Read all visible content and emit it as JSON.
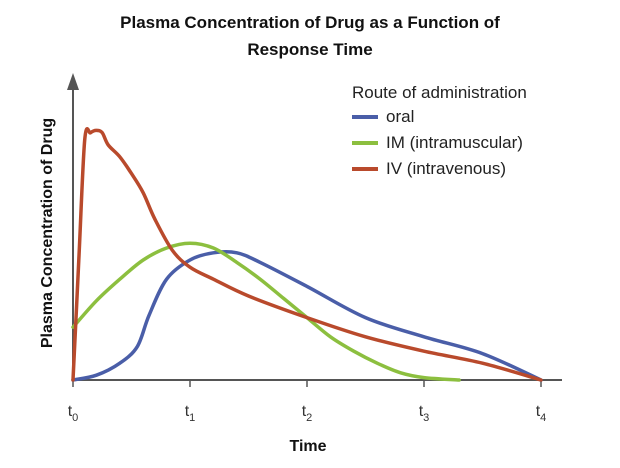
{
  "chart_data": {
    "type": "line",
    "title_lines": [
      "Plasma Concentration of Drug as a Function of",
      "Response Time"
    ],
    "xlabel": "Time",
    "ylabel": "Plasma Concentration of Drug",
    "x_ticks": [
      {
        "base": "t",
        "sub": "0",
        "x": 0
      },
      {
        "base": "t",
        "sub": "1",
        "x": 1
      },
      {
        "base": "t",
        "sub": "2",
        "x": 2
      },
      {
        "base": "t",
        "sub": "3",
        "x": 3
      },
      {
        "base": "t",
        "sub": "4",
        "x": 4
      }
    ],
    "xlim": [
      0,
      4.2
    ],
    "ylim": [
      0,
      1.05
    ],
    "y_tick_labels": false,
    "grid": false,
    "legend": {
      "title": "Route of administration",
      "placement": "top-right",
      "entries": [
        "oral",
        "IM (intramuscular)",
        "IV (intravenous)"
      ]
    },
    "series": [
      {
        "name": "oral",
        "color": "#4a5ea8",
        "points": [
          [
            0,
            0
          ],
          [
            0.2,
            0.02
          ],
          [
            0.4,
            0.07
          ],
          [
            0.55,
            0.14
          ],
          [
            0.65,
            0.27
          ],
          [
            0.8,
            0.42
          ],
          [
            1.0,
            0.5
          ],
          [
            1.2,
            0.53
          ],
          [
            1.4,
            0.53
          ],
          [
            1.6,
            0.49
          ],
          [
            2.0,
            0.39
          ],
          [
            2.5,
            0.26
          ],
          [
            3.0,
            0.18
          ],
          [
            3.5,
            0.11
          ],
          [
            4.0,
            0.0
          ]
        ]
      },
      {
        "name": "IM (intramuscular)",
        "color": "#8cbf3f",
        "points": [
          [
            0,
            0.22
          ],
          [
            0.2,
            0.33
          ],
          [
            0.4,
            0.42
          ],
          [
            0.6,
            0.5
          ],
          [
            0.8,
            0.55
          ],
          [
            1.0,
            0.57
          ],
          [
            1.2,
            0.55
          ],
          [
            1.4,
            0.49
          ],
          [
            1.6,
            0.42
          ],
          [
            1.8,
            0.34
          ],
          [
            2.0,
            0.26
          ],
          [
            2.2,
            0.18
          ],
          [
            2.4,
            0.12
          ],
          [
            2.6,
            0.07
          ],
          [
            2.8,
            0.03
          ],
          [
            3.0,
            0.01
          ],
          [
            3.3,
            0.0
          ]
        ]
      },
      {
        "name": "IV (intravenous)",
        "color": "#b94a2c",
        "points": [
          [
            0,
            0
          ],
          [
            0.05,
            0.5
          ],
          [
            0.1,
            1.0
          ],
          [
            0.15,
            1.03
          ],
          [
            0.2,
            1.04
          ],
          [
            0.25,
            1.03
          ],
          [
            0.3,
            0.98
          ],
          [
            0.4,
            0.93
          ],
          [
            0.5,
            0.86
          ],
          [
            0.6,
            0.78
          ],
          [
            0.7,
            0.67
          ],
          [
            0.85,
            0.54
          ],
          [
            1.0,
            0.47
          ],
          [
            1.2,
            0.42
          ],
          [
            1.5,
            0.35
          ],
          [
            2.0,
            0.26
          ],
          [
            2.5,
            0.18
          ],
          [
            3.0,
            0.12
          ],
          [
            3.5,
            0.07
          ],
          [
            4.0,
            0.0
          ]
        ]
      }
    ]
  }
}
